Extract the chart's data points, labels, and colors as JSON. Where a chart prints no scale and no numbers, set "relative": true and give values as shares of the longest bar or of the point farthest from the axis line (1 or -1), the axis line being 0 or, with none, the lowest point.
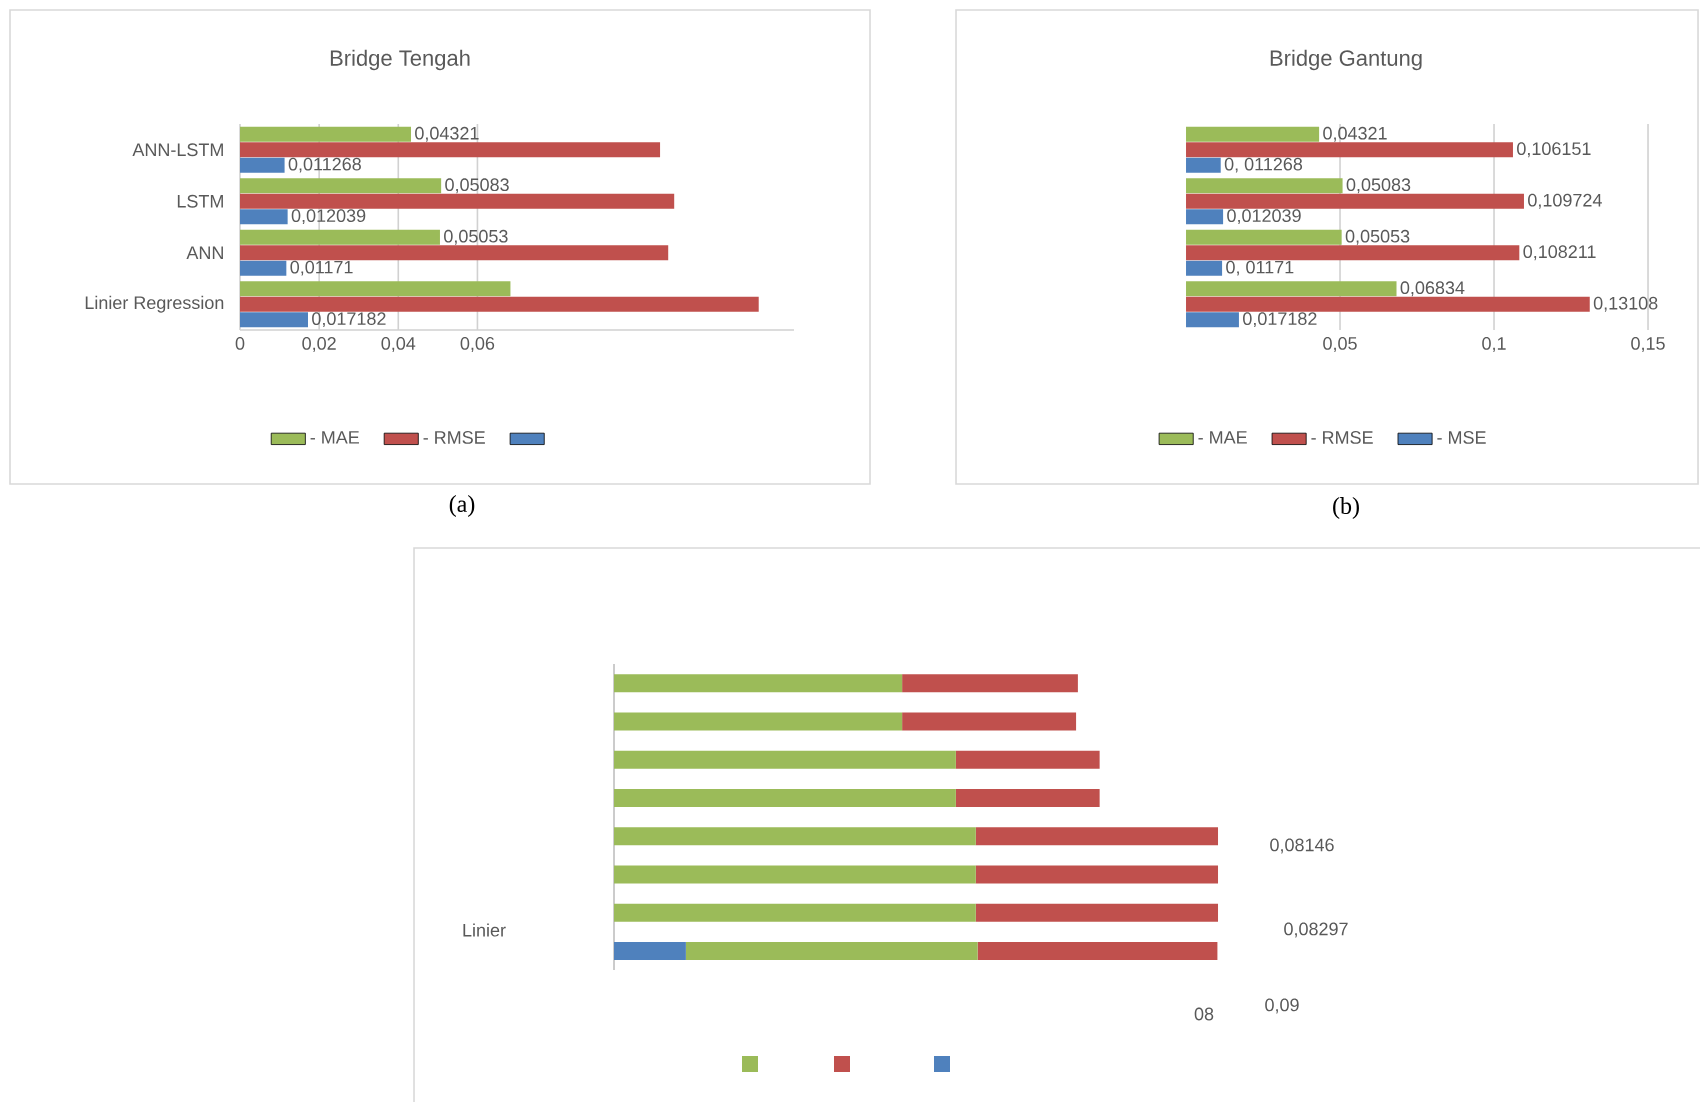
{
  "chart_data": [
    {
      "type": "bar",
      "orientation": "horizontal",
      "title": "Bridge Tengah",
      "categories": [
        "ANN-LSTM",
        "LSTM",
        "ANN",
        "Linier Regression"
      ],
      "series": [
        {
          "name": "- MAE",
          "color": "#9bbb59",
          "values": [
            0.04321,
            0.05083,
            0.05053,
            0.06834
          ],
          "value_labels": [
            "0,04321",
            "0,05083",
            "0,05053",
            null
          ]
        },
        {
          "name": "- RMSE",
          "color": "#c0504d",
          "values": [
            0.106151,
            0.109724,
            0.108211,
            0.13108
          ]
        },
        {
          "color": "#4f81bd",
          "values": [
            0.011268,
            0.012039,
            0.01171,
            0.017182
          ],
          "value_labels": [
            "0,011268",
            "0,012039",
            "0,01171",
            "0,017182"
          ]
        }
      ],
      "xlim": [
        0,
        0.14
      ],
      "xticks": [
        0,
        {
          "value": 0.02,
          "label": "0,02"
        },
        {
          "value": 0.04,
          "label": "0,04"
        },
        {
          "value": 0.06,
          "label": "0,06"
        }
      ],
      "grid": "x",
      "legend": "bottom",
      "annotations": [
        "(a)"
      ]
    },
    {
      "type": "bar",
      "orientation": "horizontal",
      "title": "Bridge Gantung",
      "categories": [
        null,
        null,
        null,
        null
      ],
      "series": [
        {
          "name": "- MAE",
          "color": "#9bbb59",
          "values": [
            0.04321,
            0.05083,
            0.05053,
            0.06834
          ],
          "value_labels": [
            "0,04321",
            "0,05083",
            "0,05053",
            "0,06834"
          ]
        },
        {
          "name": "- RMSE",
          "color": "#c0504d",
          "values": [
            0.106151,
            0.109724,
            0.108211,
            0.13108
          ],
          "value_labels": [
            "0,106151",
            "0,109724",
            "0,108211",
            "0,13108"
          ]
        },
        {
          "name": "- MSE",
          "color": "#4f81bd",
          "values": [
            0.011268,
            0.012039,
            0.01171,
            0.017182
          ],
          "value_labels": [
            "0, 011268",
            "0,012039",
            "0, 01171",
            "0,017182"
          ]
        }
      ],
      "xlim": [
        0,
        0.15
      ],
      "xticks": [
        {
          "value": 0.05,
          "label": "0,05"
        },
        {
          "value": 0.1,
          "label": "0,1"
        },
        {
          "value": 0.15,
          "label": "0,15"
        }
      ],
      "grid": "x",
      "legend": "bottom",
      "annotations": [
        "(b)"
      ]
    },
    {
      "type": "bar",
      "orientation": "horizontal",
      "stacked": true,
      "relative": true,
      "categories": [
        null,
        null,
        null,
        null,
        null,
        null,
        null,
        null
      ],
      "series": [
        {
          "color": "#4f81bd",
          "values": [
            null,
            null,
            null,
            null,
            null,
            null,
            null,
            0.119
          ]
        },
        {
          "color": "#9bbb59",
          "values": [
            0.477,
            0.477,
            0.566,
            0.566,
            0.599,
            0.599,
            0.599,
            0.483
          ]
        },
        {
          "color": "#c0504d",
          "values": [
            0.291,
            0.288,
            0.238,
            0.238,
            0.401,
            0.401,
            0.401,
            0.397
          ]
        }
      ],
      "annotations": [
        "Linier",
        "0,08146",
        "0,08297",
        "08",
        "0,09"
      ]
    }
  ]
}
